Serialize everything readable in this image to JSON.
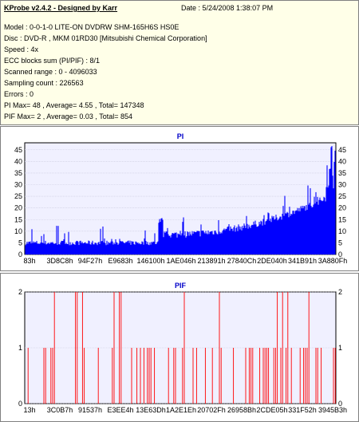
{
  "header": {
    "title": "KProbe v2.4.2 - Designed by Karr",
    "date": "Date : 5/24/2008 1:38:07 PM"
  },
  "info_lines": [
    "Model : 0-0-1-0 LITE-ON DVDRW SHM-165H6S HS0E",
    "Disc : DVD-R , MKM 01RD30  [Mitsubishi Chemical Corporation]",
    "Speed : 4x",
    "ECC blocks sum (PI/PIF) : 8/1",
    "Scanned range : 0 - 4096033",
    "Sampling count : 226563",
    "Errors : 0",
    "PI Max= 48 , Average= 4.55 , Total= 147348",
    "PIF Max= 2 , Average= 0.03 , Total= 854"
  ],
  "colors": {
    "pi": "#0000ff",
    "pif": "#ff0000",
    "plot_bg": "#f0f0ff",
    "title": "#0000c8"
  },
  "chart_data": [
    {
      "type": "bar",
      "title": "PI",
      "ylim": [
        0,
        48
      ],
      "yticks": [
        0,
        5,
        10,
        15,
        20,
        25,
        30,
        35,
        40,
        45
      ],
      "xticks": [
        "83h",
        "3D8C8h",
        "94F27h",
        "E9683h",
        "146100h",
        "1AE046h",
        "213891h",
        "27840Ch",
        "2DE040h",
        "341B91h",
        "3A880Fh"
      ],
      "max": 48,
      "average": 4.55,
      "total": 147348
    },
    {
      "type": "bar",
      "title": "PIF",
      "ylim": [
        0,
        2
      ],
      "yticks": [
        0,
        1,
        2
      ],
      "xticks": [
        "13h",
        "3C0B7h",
        "91537h",
        "E3EE4h",
        "13E63Dh",
        "1A2E1Eh",
        "20702Fh",
        "26958Bh",
        "2CDE05h",
        "331F52h",
        "3945B3h"
      ],
      "max": 2,
      "average": 0.03,
      "total": 854
    }
  ]
}
